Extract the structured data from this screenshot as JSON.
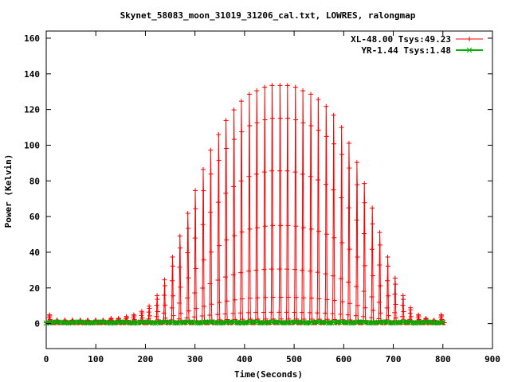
{
  "chart_data": {
    "type": "line",
    "title": "Skynet_58083_moon_31019_31206_cal.txt, LOWRES, ralongmap",
    "xlabel": "Time(Seconds)",
    "ylabel": "Power (Kelvin)",
    "xlim": [
      0,
      900
    ],
    "ylim": [
      -14,
      164
    ],
    "xticks": [
      0,
      100,
      200,
      300,
      400,
      500,
      600,
      700,
      800,
      900
    ],
    "yticks": [
      0,
      20,
      40,
      60,
      80,
      100,
      120,
      140,
      160
    ],
    "grid": false,
    "legend_position": "top-right",
    "scan_start_times": [
      0,
      15,
      31,
      46,
      62,
      77,
      93,
      108,
      124,
      139,
      155,
      170,
      186,
      201,
      217,
      232,
      248,
      263,
      279,
      294,
      310,
      325,
      341,
      356,
      372,
      387,
      403,
      418,
      434,
      449,
      465,
      480,
      496,
      511,
      527,
      542,
      558,
      573,
      589,
      604,
      620,
      635,
      651,
      666,
      682,
      697,
      713,
      728,
      744,
      759,
      775,
      790
    ],
    "scan_peak_values": [
      5,
      2,
      2,
      2,
      2,
      2,
      2,
      2,
      3,
      3,
      4,
      5,
      7,
      10,
      16,
      25,
      38,
      50,
      63,
      76,
      88,
      99,
      108,
      116,
      122,
      127,
      131,
      133,
      135,
      136,
      136,
      136,
      135,
      133,
      131,
      128,
      124,
      119,
      112,
      103,
      92,
      80,
      66,
      52,
      38,
      26,
      16,
      9,
      5,
      3,
      2,
      5
    ],
    "series": [
      {
        "name": "XL-48.00 Tsys:49.23",
        "color": "#ff0000",
        "marker": "+",
        "description_values": "peaks per scan listed in scan_peak_values"
      },
      {
        "name": "YR-1.44 Tsys:1.48",
        "color": "#00b000",
        "marker": "x",
        "values_range": [
          0,
          1
        ]
      }
    ]
  }
}
